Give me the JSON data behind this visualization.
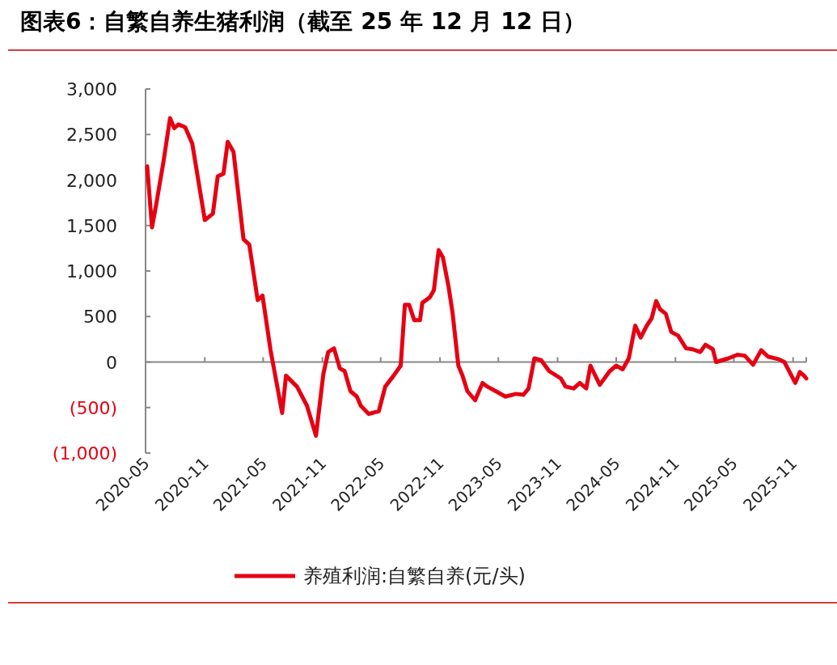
{
  "chart_data": {
    "type": "line",
    "title": "图表6：自繁自养生猪利润（截至 25 年 12 月 12 日）",
    "x": [
      "2020-05-06",
      "2020-05-21",
      "2020-06-03",
      "2020-06-26",
      "2020-07-16",
      "2020-07-29",
      "2020-08-11",
      "2020-09-01",
      "2020-09-23",
      "2020-11-01",
      "2020-11-26",
      "2020-12-11",
      "2020-12-29",
      "2021-01-11",
      "2021-01-29",
      "2021-03-01",
      "2021-03-19",
      "2021-04-14",
      "2021-04-29",
      "2021-05-24",
      "2021-06-29",
      "2021-07-11",
      "2021-08-14",
      "2021-09-14",
      "2021-10-12",
      "2021-11-04",
      "2021-11-19",
      "2021-12-07",
      "2021-12-25",
      "2022-01-09",
      "2022-01-27",
      "2022-02-16",
      "2022-02-28",
      "2022-03-25",
      "2022-04-25",
      "2022-05-15",
      "2022-06-10",
      "2022-07-02",
      "2022-07-15",
      "2022-07-28",
      "2022-08-13",
      "2022-08-31",
      "2022-09-07",
      "2022-09-30",
      "2022-10-13",
      "2022-10-28",
      "2022-11-10",
      "2022-11-28",
      "2022-12-10",
      "2022-12-28",
      "2023-01-10",
      "2023-01-25",
      "2023-02-18",
      "2023-03-13",
      "2023-03-28",
      "2023-04-23",
      "2023-05-23",
      "2023-06-25",
      "2023-07-18",
      "2023-08-03",
      "2023-08-21",
      "2023-09-11",
      "2023-10-06",
      "2023-11-11",
      "2023-11-26",
      "2023-12-21",
      "2024-01-09",
      "2024-01-29",
      "2024-02-11",
      "2024-03-11",
      "2024-04-11",
      "2024-05-01",
      "2024-05-21",
      "2024-06-09",
      "2024-06-29",
      "2024-07-16",
      "2024-08-04",
      "2024-08-19",
      "2024-09-02",
      "2024-09-14",
      "2024-10-02",
      "2024-10-19",
      "2024-11-09",
      "2024-12-04",
      "2024-12-24",
      "2025-01-17",
      "2025-02-02",
      "2025-02-25",
      "2025-03-07",
      "2025-04-14",
      "2025-05-12",
      "2025-06-04",
      "2025-06-30",
      "2025-07-25",
      "2025-08-15",
      "2025-09-18",
      "2025-10-05",
      "2025-11-08",
      "2025-11-22",
      "2025-12-05",
      "2025-12-12"
    ],
    "series": [
      {
        "name": "养殖利润:自繁自养(元/头)",
        "color": "#e60012",
        "values": [
          2150,
          1480,
          1730,
          2210,
          2680,
          2570,
          2610,
          2580,
          2400,
          1560,
          1630,
          2040,
          2070,
          2420,
          2310,
          1350,
          1290,
          680,
          730,
          130,
          -560,
          -150,
          -270,
          -480,
          -810,
          -130,
          110,
          150,
          -70,
          -100,
          -320,
          -380,
          -480,
          -570,
          -540,
          -270,
          -150,
          -40,
          630,
          630,
          460,
          460,
          650,
          710,
          790,
          1230,
          1150,
          820,
          540,
          -40,
          -150,
          -320,
          -420,
          -230,
          -270,
          -320,
          -380,
          -350,
          -360,
          -290,
          40,
          20,
          -100,
          -180,
          -270,
          -290,
          -230,
          -290,
          -40,
          -250,
          -100,
          -40,
          -80,
          40,
          400,
          270,
          400,
          480,
          670,
          580,
          530,
          330,
          290,
          150,
          140,
          110,
          190,
          140,
          0,
          40,
          80,
          70,
          -30,
          130,
          60,
          30,
          0,
          -230,
          -110,
          -150,
          -180
        ]
      }
    ],
    "xlim": [
      "2020-05-01",
      "2025-12-12"
    ],
    "xticks": [
      "2020-05",
      "2020-11",
      "2021-05",
      "2021-11",
      "2022-05",
      "2022-11",
      "2023-05",
      "2023-11",
      "2024-05",
      "2024-11",
      "2025-05",
      "2025-11"
    ],
    "ylim": [
      -1000,
      3000
    ],
    "yticks": [
      {
        "value": 3000,
        "label": "3,000"
      },
      {
        "value": 2500,
        "label": "2,500"
      },
      {
        "value": 2000,
        "label": "2,000"
      },
      {
        "value": 1500,
        "label": "1,500"
      },
      {
        "value": 1000,
        "label": "1,000"
      },
      {
        "value": 500,
        "label": "500"
      },
      {
        "value": 0,
        "label": "0"
      },
      {
        "value": -500,
        "label": "(500)"
      },
      {
        "value": -1000,
        "label": "(1,000)"
      }
    ],
    "legend": "bottom"
  }
}
